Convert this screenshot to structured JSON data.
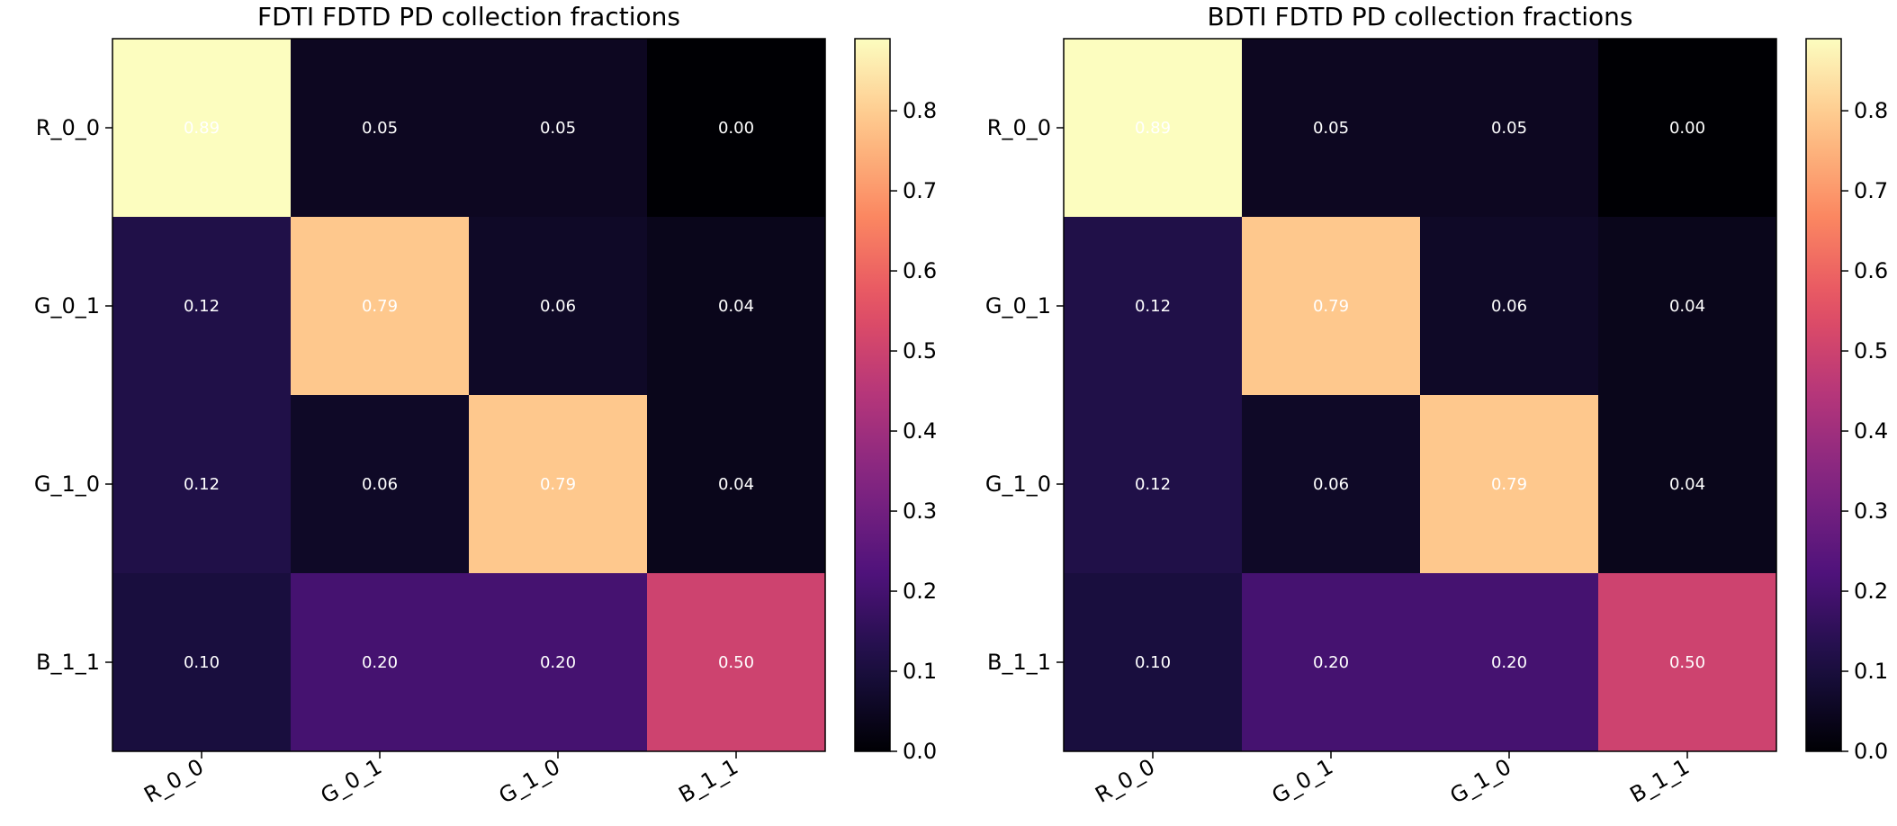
{
  "chart_data": [
    {
      "type": "heatmap",
      "title": "FDTI FDTD PD collection fractions",
      "x_categories": [
        "R_0_0",
        "G_0_1",
        "G_1_0",
        "B_1_1"
      ],
      "y_categories": [
        "R_0_0",
        "G_0_1",
        "G_1_0",
        "B_1_1"
      ],
      "values": [
        [
          0.89,
          0.05,
          0.05,
          0.0
        ],
        [
          0.12,
          0.79,
          0.06,
          0.04
        ],
        [
          0.12,
          0.06,
          0.79,
          0.04
        ],
        [
          0.1,
          0.2,
          0.2,
          0.5
        ]
      ],
      "cell_labels": [
        [
          "0.89",
          "0.05",
          "0.05",
          "0.00"
        ],
        [
          "0.12",
          "0.79",
          "0.06",
          "0.04"
        ],
        [
          "0.12",
          "0.06",
          "0.79",
          "0.04"
        ],
        [
          "0.10",
          "0.20",
          "0.20",
          "0.50"
        ]
      ],
      "colormap": "magma",
      "colorbar": {
        "vmin": 0.0,
        "vmax": 0.89,
        "ticks": [
          0.0,
          0.1,
          0.2,
          0.3,
          0.4,
          0.5,
          0.6,
          0.7,
          0.8
        ],
        "tick_labels": [
          "0.0",
          "0.1",
          "0.2",
          "0.3",
          "0.4",
          "0.5",
          "0.6",
          "0.7",
          "0.8"
        ]
      },
      "xlabel": "",
      "ylabel": ""
    },
    {
      "type": "heatmap",
      "title": "BDTI FDTD PD collection fractions",
      "x_categories": [
        "R_0_0",
        "G_0_1",
        "G_1_0",
        "B_1_1"
      ],
      "y_categories": [
        "R_0_0",
        "G_0_1",
        "G_1_0",
        "B_1_1"
      ],
      "values": [
        [
          0.89,
          0.05,
          0.05,
          0.0
        ],
        [
          0.12,
          0.79,
          0.06,
          0.04
        ],
        [
          0.12,
          0.06,
          0.79,
          0.04
        ],
        [
          0.1,
          0.2,
          0.2,
          0.5
        ]
      ],
      "cell_labels": [
        [
          "0.89",
          "0.05",
          "0.05",
          "0.00"
        ],
        [
          "0.12",
          "0.79",
          "0.06",
          "0.04"
        ],
        [
          "0.12",
          "0.06",
          "0.79",
          "0.04"
        ],
        [
          "0.10",
          "0.20",
          "0.20",
          "0.50"
        ]
      ],
      "colormap": "magma",
      "colorbar": {
        "vmin": 0.0,
        "vmax": 0.89,
        "ticks": [
          0.0,
          0.1,
          0.2,
          0.3,
          0.4,
          0.5,
          0.6,
          0.7,
          0.8
        ],
        "tick_labels": [
          "0.0",
          "0.1",
          "0.2",
          "0.3",
          "0.4",
          "0.5",
          "0.6",
          "0.7",
          "0.8"
        ]
      },
      "xlabel": "",
      "ylabel": ""
    }
  ]
}
